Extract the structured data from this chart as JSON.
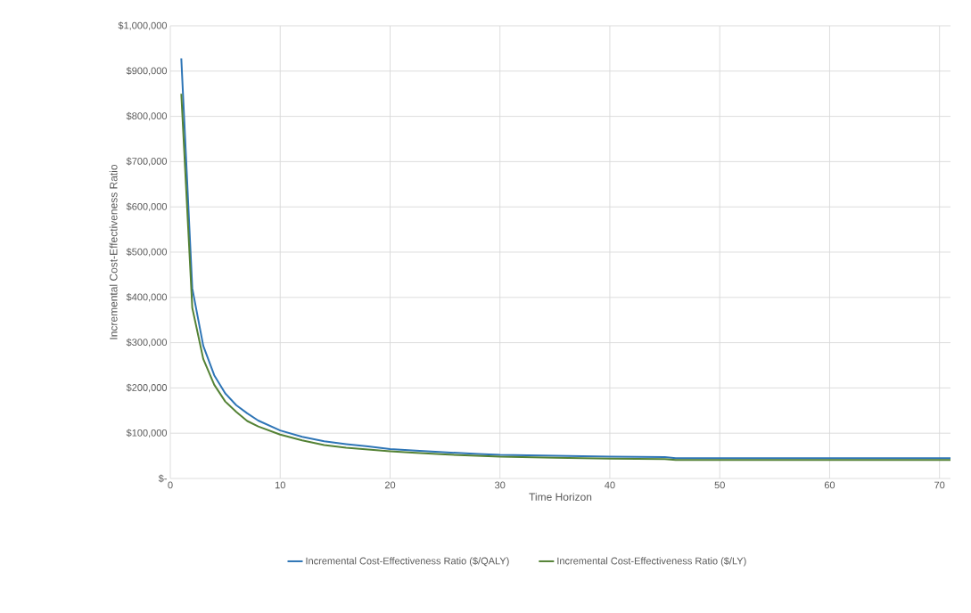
{
  "chart_data": {
    "type": "line",
    "xlabel": "Time Horizon",
    "ylabel": "Incremental Cost-Effectiveness Ratio",
    "xlim": [
      0,
      71
    ],
    "xticks": [
      0,
      10,
      20,
      30,
      40,
      50,
      60,
      70
    ],
    "ylim": [
      0,
      1000000
    ],
    "yticks": [
      {
        "value": 0,
        "label": "$-"
      },
      {
        "value": 100000,
        "label": "$100,000"
      },
      {
        "value": 200000,
        "label": "$200,000"
      },
      {
        "value": 300000,
        "label": "$300,000"
      },
      {
        "value": 400000,
        "label": "$400,000"
      },
      {
        "value": 500000,
        "label": "$500,000"
      },
      {
        "value": 600000,
        "label": "$600,000"
      },
      {
        "value": 700000,
        "label": "$700,000"
      },
      {
        "value": 800000,
        "label": "$800,000"
      },
      {
        "value": 900000,
        "label": "$900,000"
      },
      {
        "value": 1000000,
        "label": "$1,000,000"
      }
    ],
    "grid": true,
    "legend": "bottom",
    "marker": "none",
    "line_style": "solid",
    "x": [
      1,
      2,
      3,
      4,
      5,
      6,
      7,
      8,
      10,
      12,
      14,
      16,
      18,
      20,
      22,
      25,
      28,
      30,
      35,
      40,
      45,
      46,
      50,
      60,
      71
    ],
    "series": [
      {
        "name": "Incremental Cost-Effectiveness Ratio ($/QALY)",
        "color": "#2e75b6",
        "values": [
          928000,
          420000,
          293000,
          228000,
          188000,
          162000,
          144000,
          128000,
          106000,
          92000,
          82000,
          76000,
          71000,
          65000,
          62000,
          58000,
          54000,
          52000,
          50000,
          48000,
          47000,
          45000,
          45000,
          45000,
          45000
        ]
      },
      {
        "name": "Incremental Cost-Effectiveness Ratio ($/LY)",
        "color": "#548235",
        "values": [
          850000,
          377000,
          264000,
          207000,
          170000,
          147000,
          127000,
          115000,
          97000,
          84000,
          74000,
          68000,
          64000,
          60000,
          57000,
          53000,
          50000,
          48000,
          46000,
          44000,
          43000,
          41000,
          41000,
          41000,
          41000
        ]
      }
    ]
  }
}
